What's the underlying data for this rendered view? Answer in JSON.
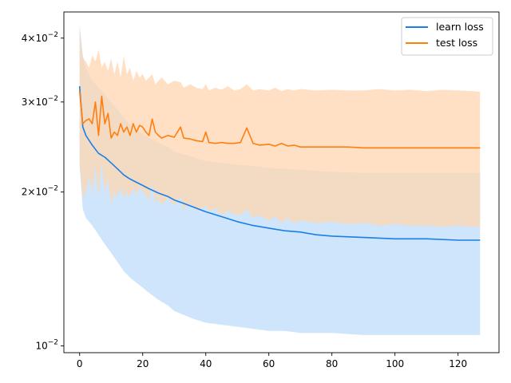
{
  "chart_data": {
    "type": "line",
    "title": "",
    "xlabel": "",
    "ylabel": "",
    "yscale": "log",
    "xlim": [
      -5,
      133
    ],
    "ylim": [
      0.0097,
      0.045
    ],
    "grid": false,
    "legend_position": "top-right",
    "x_ticks": [
      0,
      20,
      40,
      60,
      80,
      100,
      120
    ],
    "x_tick_labels": [
      "0",
      "20",
      "40",
      "60",
      "80",
      "100",
      "120"
    ],
    "y_ticks": [
      0.01,
      0.02,
      0.03,
      0.04
    ],
    "y_tick_labels": [
      {
        "mantissa": "",
        "exponent": "−2",
        "value": 0.01
      },
      {
        "mantissa": "2",
        "exponent": "−2",
        "value": 0.02
      },
      {
        "mantissa": "3",
        "exponent": "−2",
        "value": 0.03
      },
      {
        "mantissa": "4",
        "exponent": "−2",
        "value": 0.04
      }
    ],
    "series": [
      {
        "name": "learn loss",
        "color": "#1a7fe8",
        "band_color": "#cce4fb",
        "x": [
          0,
          1,
          2,
          4,
          6,
          8,
          10,
          12,
          14,
          16,
          18,
          20,
          22,
          25,
          28,
          30,
          33,
          36,
          40,
          45,
          50,
          55,
          60,
          65,
          70,
          75,
          80,
          90,
          100,
          110,
          120,
          127
        ],
        "mean": [
          0.0322,
          0.0268,
          0.0258,
          0.0247,
          0.0238,
          0.0234,
          0.0228,
          0.0222,
          0.0216,
          0.0212,
          0.0209,
          0.0206,
          0.0203,
          0.0199,
          0.0196,
          0.0193,
          0.019,
          0.0187,
          0.0183,
          0.0179,
          0.0175,
          0.0172,
          0.017,
          0.0168,
          0.0167,
          0.0165,
          0.0164,
          0.0163,
          0.0162,
          0.0162,
          0.0161,
          0.0161
        ],
        "upper": [
          0.0425,
          0.037,
          0.035,
          0.033,
          0.032,
          0.031,
          0.03,
          0.029,
          0.028,
          0.027,
          0.0265,
          0.026,
          0.0255,
          0.025,
          0.0245,
          0.024,
          0.0237,
          0.0234,
          0.023,
          0.0228,
          0.0226,
          0.0225,
          0.0223,
          0.0222,
          0.0221,
          0.022,
          0.0219,
          0.0218,
          0.0218,
          0.0218,
          0.0218,
          0.0218
        ],
        "lower": [
          0.0225,
          0.0185,
          0.0178,
          0.0172,
          0.0165,
          0.0158,
          0.0152,
          0.0146,
          0.014,
          0.0136,
          0.0133,
          0.013,
          0.0127,
          0.0123,
          0.012,
          0.0117,
          0.0115,
          0.0113,
          0.0111,
          0.011,
          0.0109,
          0.0108,
          0.0107,
          0.0107,
          0.0106,
          0.0106,
          0.0106,
          0.0105,
          0.0105,
          0.0105,
          0.0105,
          0.0105
        ]
      },
      {
        "name": "test loss",
        "color": "#ff7f0e",
        "band_color": "#ffd5b0",
        "x": [
          0,
          1,
          2,
          3,
          4,
          5,
          6,
          7,
          8,
          9,
          10,
          11,
          12,
          13,
          14,
          15,
          16,
          17,
          18,
          19,
          20,
          21,
          22,
          23,
          24,
          25,
          26,
          28,
          30,
          32,
          33,
          35,
          37,
          39,
          40,
          41,
          43,
          45,
          47,
          49,
          51,
          53,
          55,
          57,
          60,
          62,
          64,
          66,
          68,
          70,
          75,
          80,
          85,
          90,
          95,
          100,
          105,
          110,
          115,
          120,
          125,
          127
        ],
        "mean": [
          0.0315,
          0.0272,
          0.0276,
          0.0278,
          0.0272,
          0.03,
          0.0258,
          0.0308,
          0.0272,
          0.0285,
          0.0255,
          0.0262,
          0.0258,
          0.0272,
          0.0262,
          0.0268,
          0.0258,
          0.0272,
          0.0262,
          0.027,
          0.0268,
          0.0262,
          0.0258,
          0.0278,
          0.0262,
          0.0258,
          0.0255,
          0.0258,
          0.0256,
          0.0268,
          0.0255,
          0.0254,
          0.0252,
          0.0251,
          0.0262,
          0.025,
          0.0249,
          0.025,
          0.0249,
          0.0249,
          0.025,
          0.0267,
          0.0249,
          0.0247,
          0.0248,
          0.0246,
          0.0249,
          0.0246,
          0.0247,
          0.0245,
          0.0245,
          0.0245,
          0.0245,
          0.0244,
          0.0244,
          0.0244,
          0.0244,
          0.0244,
          0.0244,
          0.0244,
          0.0244,
          0.0244
        ],
        "upper": [
          0.041,
          0.0365,
          0.036,
          0.035,
          0.037,
          0.036,
          0.038,
          0.035,
          0.036,
          0.0345,
          0.0365,
          0.034,
          0.036,
          0.0335,
          0.037,
          0.034,
          0.035,
          0.033,
          0.0345,
          0.0335,
          0.034,
          0.033,
          0.0335,
          0.034,
          0.0325,
          0.033,
          0.0335,
          0.0325,
          0.033,
          0.0328,
          0.032,
          0.0325,
          0.032,
          0.0318,
          0.0325,
          0.0316,
          0.032,
          0.0317,
          0.0322,
          0.0316,
          0.0318,
          0.0325,
          0.0316,
          0.0318,
          0.0316,
          0.032,
          0.0315,
          0.0318,
          0.0316,
          0.0318,
          0.0316,
          0.0317,
          0.0316,
          0.0316,
          0.0318,
          0.0316,
          0.0317,
          0.0315,
          0.0317,
          0.0316,
          0.0315,
          0.0314
        ],
        "lower": [
          0.023,
          0.0195,
          0.02,
          0.0215,
          0.02,
          0.0225,
          0.0195,
          0.0228,
          0.02,
          0.0212,
          0.019,
          0.02,
          0.0195,
          0.0205,
          0.0195,
          0.02,
          0.0195,
          0.0205,
          0.0197,
          0.0205,
          0.02,
          0.0198,
          0.0192,
          0.0208,
          0.019,
          0.0195,
          0.0188,
          0.0195,
          0.0188,
          0.0196,
          0.0185,
          0.019,
          0.0184,
          0.0186,
          0.0188,
          0.0183,
          0.0186,
          0.018,
          0.0184,
          0.0181,
          0.018,
          0.0185,
          0.0178,
          0.018,
          0.0176,
          0.0179,
          0.0174,
          0.0178,
          0.0174,
          0.0176,
          0.0174,
          0.0175,
          0.0173,
          0.0174,
          0.0172,
          0.0173,
          0.0172,
          0.0172,
          0.0171,
          0.0172,
          0.0171,
          0.0171
        ]
      }
    ]
  }
}
